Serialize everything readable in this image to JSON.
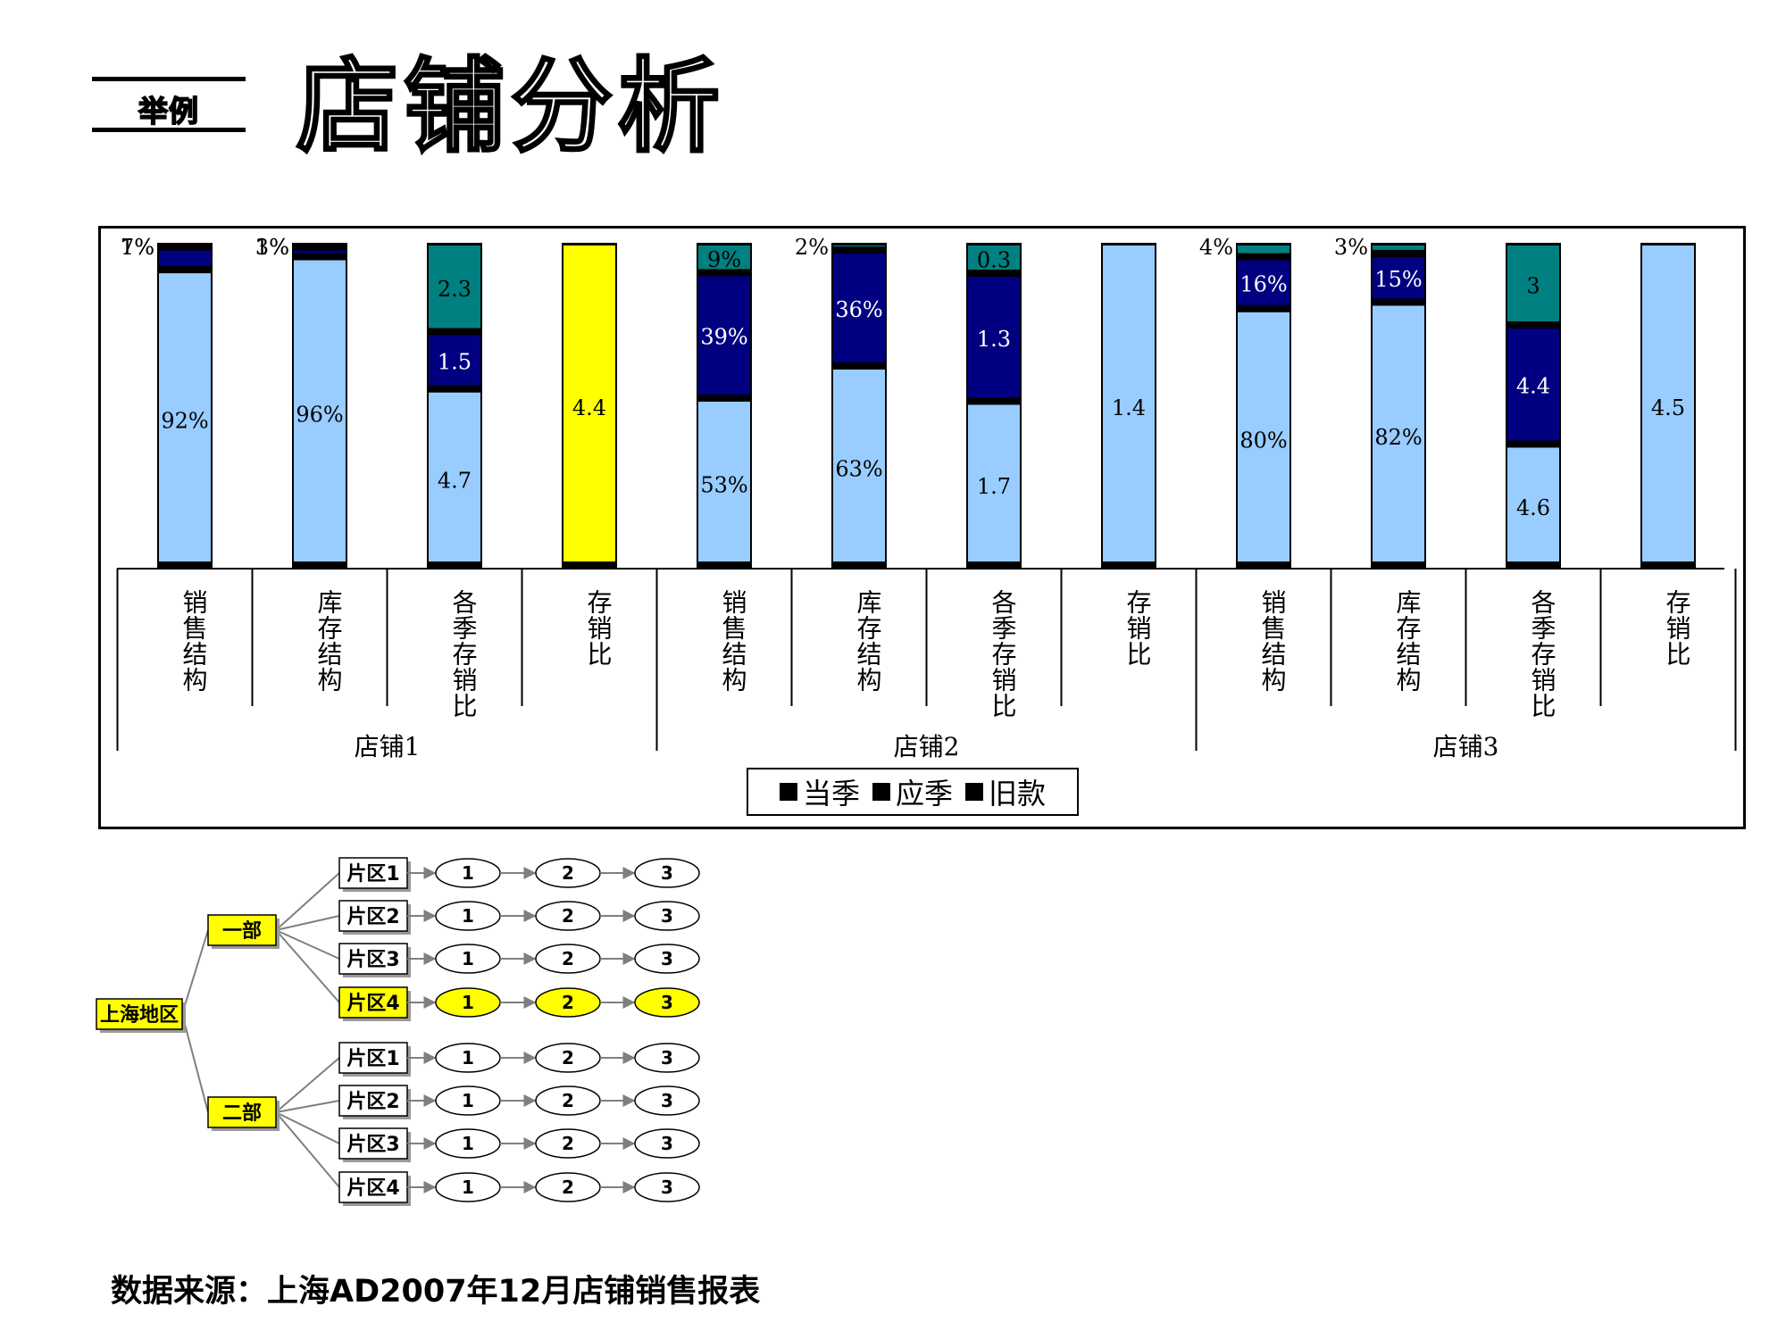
{
  "header": {
    "tag": "举例",
    "title": "店铺分析"
  },
  "chart_data": {
    "type": "bar",
    "stacked": true,
    "legend": {
      "position": "bottom",
      "entries": [
        "当季",
        "应季",
        "旧款"
      ]
    },
    "groups": [
      "店铺1",
      "店铺2",
      "店铺3"
    ],
    "categories": [
      "销售结构",
      "库存结构",
      "各季存销比",
      "存销比"
    ],
    "colors": {
      "当季": "#99CCFF",
      "应季": "#000080",
      "旧款": "#008080",
      "存销比": "#99CCFF",
      "highlight": "#FFFF00"
    },
    "bars": [
      {
        "group": "店铺1",
        "category": "销售结构",
        "segments": [
          {
            "series": "当季",
            "value": 0.92,
            "label": "92%"
          },
          {
            "series": "应季",
            "value": 0.07,
            "label": "7%"
          },
          {
            "series": "旧款",
            "value": 0.01,
            "label": "1%"
          }
        ]
      },
      {
        "group": "店铺1",
        "category": "库存结构",
        "segments": [
          {
            "series": "当季",
            "value": 0.96,
            "label": "96%"
          },
          {
            "series": "应季",
            "value": 0.03,
            "label": "3%"
          },
          {
            "series": "旧款",
            "value": 0.01,
            "label": "1%"
          }
        ]
      },
      {
        "group": "店铺1",
        "category": "各季存销比",
        "segments": [
          {
            "series": "当季",
            "value": 4.7,
            "label": "4.7"
          },
          {
            "series": "应季",
            "value": 1.5,
            "label": "1.5"
          },
          {
            "series": "旧款",
            "value": 2.3,
            "label": "2.3"
          }
        ]
      },
      {
        "group": "店铺1",
        "category": "存销比",
        "highlight": true,
        "segments": [
          {
            "series": "存销比",
            "value": 4.4,
            "label": "4.4"
          }
        ]
      },
      {
        "group": "店铺2",
        "category": "销售结构",
        "segments": [
          {
            "series": "当季",
            "value": 0.53,
            "label": "53%"
          },
          {
            "series": "应季",
            "value": 0.39,
            "label": "39%"
          },
          {
            "series": "旧款",
            "value": 0.09,
            "label": "9%"
          }
        ]
      },
      {
        "group": "店铺2",
        "category": "库存结构",
        "segments": [
          {
            "series": "当季",
            "value": 0.63,
            "label": "63%"
          },
          {
            "series": "应季",
            "value": 0.36,
            "label": "36%"
          },
          {
            "series": "旧款",
            "value": 0.02,
            "label": "2%"
          }
        ]
      },
      {
        "group": "店铺2",
        "category": "各季存销比",
        "segments": [
          {
            "series": "当季",
            "value": 1.7,
            "label": "1.7"
          },
          {
            "series": "应季",
            "value": 1.3,
            "label": "1.3"
          },
          {
            "series": "旧款",
            "value": 0.3,
            "label": "0.3"
          }
        ]
      },
      {
        "group": "店铺2",
        "category": "存销比",
        "segments": [
          {
            "series": "存销比",
            "value": 1.4,
            "label": "1.4"
          }
        ]
      },
      {
        "group": "店铺3",
        "category": "销售结构",
        "segments": [
          {
            "series": "当季",
            "value": 0.8,
            "label": "80%"
          },
          {
            "series": "应季",
            "value": 0.16,
            "label": "16%"
          },
          {
            "series": "旧款",
            "value": 0.04,
            "label": "4%"
          }
        ]
      },
      {
        "group": "店铺3",
        "category": "库存结构",
        "segments": [
          {
            "series": "当季",
            "value": 0.82,
            "label": "82%"
          },
          {
            "series": "应季",
            "value": 0.15,
            "label": "15%"
          },
          {
            "series": "旧款",
            "value": 0.03,
            "label": "3%"
          }
        ]
      },
      {
        "group": "店铺3",
        "category": "各季存销比",
        "segments": [
          {
            "series": "当季",
            "value": 4.6,
            "label": "4.6"
          },
          {
            "series": "应季",
            "value": 4.4,
            "label": "4.4"
          },
          {
            "series": "旧款",
            "value": 3,
            "label": "3"
          }
        ]
      },
      {
        "group": "店铺3",
        "category": "存销比",
        "segments": [
          {
            "series": "存销比",
            "value": 4.5,
            "label": "4.5"
          }
        ]
      }
    ]
  },
  "org": {
    "root": "上海地区",
    "departments": [
      {
        "name": "一部",
        "highlight": true,
        "zones": [
          {
            "name": "片区1",
            "stores": [
              "1",
              "2",
              "3"
            ],
            "highlight": false
          },
          {
            "name": "片区2",
            "stores": [
              "1",
              "2",
              "3"
            ],
            "highlight": false
          },
          {
            "name": "片区3",
            "stores": [
              "1",
              "2",
              "3"
            ],
            "highlight": false
          },
          {
            "name": "片区4",
            "stores": [
              "1",
              "2",
              "3"
            ],
            "highlight": true
          }
        ]
      },
      {
        "name": "二部",
        "highlight": true,
        "zones": [
          {
            "name": "片区1",
            "stores": [
              "1",
              "2",
              "3"
            ],
            "highlight": false
          },
          {
            "name": "片区2",
            "stores": [
              "1",
              "2",
              "3"
            ],
            "highlight": false
          },
          {
            "name": "片区3",
            "stores": [
              "1",
              "2",
              "3"
            ],
            "highlight": false
          },
          {
            "name": "片区4",
            "stores": [
              "1",
              "2",
              "3"
            ],
            "highlight": false
          }
        ]
      }
    ],
    "colors": {
      "highlight": "#FFFF00",
      "node": "#FFFFFF",
      "connector": "#7F7F7F"
    }
  },
  "footer": {
    "source": "数据来源：上海AD2007年12月店铺销售报表"
  }
}
